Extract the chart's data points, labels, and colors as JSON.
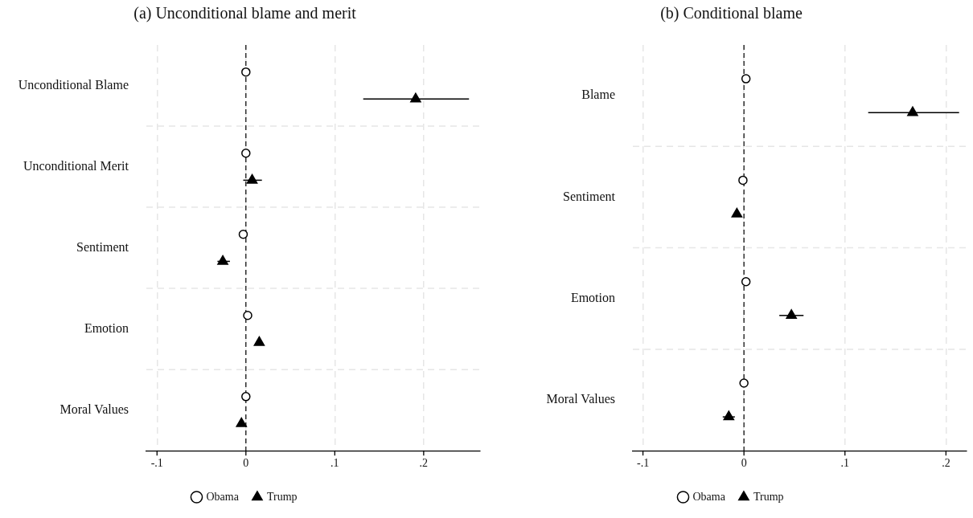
{
  "chart_data": [
    {
      "type": "scatter",
      "orientation": "horizontal",
      "title": "(a) Unconditional blame and merit",
      "categories": [
        "Unconditional Blame",
        "Unconditional Merit",
        "Sentiment",
        "Emotion",
        "Moral Values"
      ],
      "series": [
        {
          "name": "Obama",
          "color": "#000000",
          "marker": "circle",
          "values": [
            0.0,
            0.0,
            -0.003,
            0.002,
            0.0
          ]
        },
        {
          "name": "Trump",
          "color": "#000000",
          "marker": "triangle",
          "values": [
            0.191,
            0.007,
            -0.026,
            0.015,
            -0.005
          ],
          "errors": [
            [
              0.132,
              0.251
            ],
            [
              -0.003,
              0.018
            ],
            [
              -0.032,
              -0.018
            ],
            [
              0.012,
              0.018
            ],
            [
              -0.008,
              -0.002
            ]
          ]
        }
      ],
      "xlim": [
        -0.112,
        0.263
      ],
      "xticks": [
        {
          "value": -0.1,
          "label": "-.1"
        },
        0,
        {
          "value": 0.1,
          "label": ".1"
        },
        {
          "value": 0.2,
          "label": ".2"
        }
      ],
      "ref_lines": [
        {
          "axis": "x",
          "value": 0,
          "color": "#000000",
          "line_style": "dashed"
        }
      ],
      "grid": true,
      "legend": "bottom"
    },
    {
      "type": "scatter",
      "orientation": "horizontal",
      "title": "(b) Conditional blame",
      "categories": [
        "Blame",
        "Sentiment",
        "Emotion",
        "Moral Values"
      ],
      "series": [
        {
          "name": "Obama",
          "color": "#000000",
          "marker": "circle",
          "values": [
            0.002,
            -0.001,
            0.002,
            0.0
          ]
        },
        {
          "name": "Trump",
          "color": "#000000",
          "marker": "triangle",
          "values": [
            0.167,
            -0.007,
            0.047,
            -0.015
          ],
          "errors": [
            [
              0.123,
              0.213
            ],
            null,
            [
              0.035,
              0.059
            ],
            [
              -0.021,
              -0.009
            ]
          ]
        }
      ],
      "xlim": [
        -0.11,
        0.22
      ],
      "xticks": [
        {
          "value": -0.1,
          "label": "-.1"
        },
        0,
        {
          "value": 0.1,
          "label": ".1"
        },
        {
          "value": 0.2,
          "label": ".2"
        }
      ],
      "ref_lines": [
        {
          "axis": "x",
          "value": 0,
          "color": "#000000",
          "line_style": "dashed"
        }
      ],
      "grid": true,
      "legend": "bottom"
    }
  ]
}
